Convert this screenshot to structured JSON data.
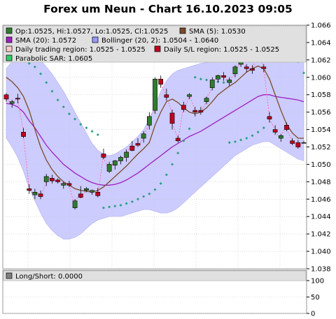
{
  "title": "Forex um Neun - Chart 16.10.2023 09:05",
  "legend": {
    "ohlc": "Op:1.0525, Hi:1.0527, Lo:1.0525, Cl:1.0525",
    "sma5": "SMA (5): 1.0530",
    "sma20": "SMA (20): 1.0572",
    "bollinger": "Bollinger (20, 2): 1.0504 - 1.0640",
    "trading_region": "Daily trading region: 1.0525 - 1.0525",
    "sl_region": "Daily S/L region: 1.0525 - 1.0525",
    "sar": "Parabolic SAR: 1.0605"
  },
  "sub_legend": {
    "longshort": "Long/Short: 0.0000"
  },
  "colors": {
    "bull": "#2e7d2e",
    "bear": "#c00020",
    "sma5": "#7a4a2a",
    "sma20": "#a020c0",
    "bollinger_fill": "#ccccff",
    "sar": "#2aa080",
    "trading_link": "#ff6699"
  },
  "chart_data": [
    {
      "type": "candlestick",
      "title": "Forex um Neun - Chart 16.10.2023 09:05",
      "ylim": [
        1.038,
        1.066
      ],
      "y_ticks": [
        "1.038",
        "1.040",
        "1.042",
        "1.044",
        "1.046",
        "1.048",
        "1.050",
        "1.052",
        "1.054",
        "1.056",
        "1.058",
        "1.060",
        "1.062",
        "1.064",
        "1.066"
      ],
      "grid": true,
      "legend_position": "top",
      "candles": [
        {
          "o": 1.058,
          "h": 1.0582,
          "l": 1.0572,
          "c": 1.0575
        },
        {
          "o": 1.057,
          "h": 1.0574,
          "l": 1.0565,
          "c": 1.0572
        },
        {
          "o": 1.0576,
          "h": 1.0581,
          "l": 1.057,
          "c": 1.0575
        },
        {
          "o": 1.0537,
          "h": 1.0542,
          "l": 1.053,
          "c": 1.0532
        },
        {
          "o": 1.0472,
          "h": 1.0477,
          "l": 1.0466,
          "c": 1.047
        },
        {
          "o": 1.0465,
          "h": 1.0472,
          "l": 1.046,
          "c": 1.0468
        },
        {
          "o": 1.0466,
          "h": 1.047,
          "l": 1.046,
          "c": 1.0463
        },
        {
          "o": 1.048,
          "h": 1.0489,
          "l": 1.0475,
          "c": 1.0486
        },
        {
          "o": 1.0484,
          "h": 1.0488,
          "l": 1.0478,
          "c": 1.0481
        },
        {
          "o": 1.0482,
          "h": 1.0484,
          "l": 1.0478,
          "c": 1.048
        },
        {
          "o": 1.0476,
          "h": 1.048,
          "l": 1.0472,
          "c": 1.0478
        },
        {
          "o": 1.0478,
          "h": 1.0481,
          "l": 1.0474,
          "c": 1.0476
        },
        {
          "o": 1.045,
          "h": 1.046,
          "l": 1.0448,
          "c": 1.0458
        },
        {
          "o": 1.0466,
          "h": 1.0475,
          "l": 1.0461,
          "c": 1.0462
        },
        {
          "o": 1.047,
          "h": 1.0474,
          "l": 1.0468,
          "c": 1.0472
        },
        {
          "o": 1.0468,
          "h": 1.0471,
          "l": 1.0465,
          "c": 1.047
        },
        {
          "o": 1.0468,
          "h": 1.0473,
          "l": 1.0462,
          "c": 1.0464
        },
        {
          "o": 1.0512,
          "h": 1.0518,
          "l": 1.0506,
          "c": 1.0508
        },
        {
          "o": 1.0492,
          "h": 1.0503,
          "l": 1.049,
          "c": 1.05
        },
        {
          "o": 1.0499,
          "h": 1.0505,
          "l": 1.0494,
          "c": 1.0504
        },
        {
          "o": 1.0504,
          "h": 1.051,
          "l": 1.05,
          "c": 1.0508
        },
        {
          "o": 1.0508,
          "h": 1.0517,
          "l": 1.0503,
          "c": 1.0514
        },
        {
          "o": 1.0521,
          "h": 1.0527,
          "l": 1.0515,
          "c": 1.0516
        },
        {
          "o": 1.0524,
          "h": 1.053,
          "l": 1.052,
          "c": 1.0522
        },
        {
          "o": 1.053,
          "h": 1.0538,
          "l": 1.0525,
          "c": 1.0535
        },
        {
          "o": 1.0545,
          "h": 1.056,
          "l": 1.054,
          "c": 1.0555
        },
        {
          "o": 1.0562,
          "h": 1.06,
          "l": 1.0558,
          "c": 1.0598
        },
        {
          "o": 1.0598,
          "h": 1.0602,
          "l": 1.0588,
          "c": 1.0592
        },
        {
          "o": 1.058,
          "h": 1.0587,
          "l": 1.0573,
          "c": 1.0577
        },
        {
          "o": 1.0559,
          "h": 1.0563,
          "l": 1.054,
          "c": 1.0547
        },
        {
          "o": 1.053,
          "h": 1.0533,
          "l": 1.0525,
          "c": 1.0527
        },
        {
          "o": 1.0568,
          "h": 1.0572,
          "l": 1.056,
          "c": 1.0563
        },
        {
          "o": 1.0578,
          "h": 1.0582,
          "l": 1.0575,
          "c": 1.058
        },
        {
          "o": 1.0562,
          "h": 1.0566,
          "l": 1.0555,
          "c": 1.056
        },
        {
          "o": 1.0562,
          "h": 1.0566,
          "l": 1.0557,
          "c": 1.056
        },
        {
          "o": 1.0572,
          "h": 1.0578,
          "l": 1.0569,
          "c": 1.0576
        },
        {
          "o": 1.0588,
          "h": 1.06,
          "l": 1.0585,
          "c": 1.0597
        },
        {
          "o": 1.0598,
          "h": 1.0603,
          "l": 1.0594,
          "c": 1.0602
        },
        {
          "o": 1.0602,
          "h": 1.0606,
          "l": 1.0596,
          "c": 1.06
        },
        {
          "o": 1.0594,
          "h": 1.06,
          "l": 1.059,
          "c": 1.0597
        },
        {
          "o": 1.0604,
          "h": 1.0614,
          "l": 1.06,
          "c": 1.0612
        },
        {
          "o": 1.0615,
          "h": 1.0621,
          "l": 1.0612,
          "c": 1.0618
        },
        {
          "o": 1.0612,
          "h": 1.0615,
          "l": 1.0606,
          "c": 1.061
        },
        {
          "o": 1.061,
          "h": 1.0614,
          "l": 1.0604,
          "c": 1.0608
        },
        {
          "o": 1.0632,
          "h": 1.0635,
          "l": 1.0626,
          "c": 1.0628
        },
        {
          "o": 1.0612,
          "h": 1.0615,
          "l": 1.0606,
          "c": 1.061
        },
        {
          "o": 1.0555,
          "h": 1.056,
          "l": 1.0548,
          "c": 1.0552
        },
        {
          "o": 1.054,
          "h": 1.0545,
          "l": 1.0534,
          "c": 1.0537
        },
        {
          "o": 1.053,
          "h": 1.0535,
          "l": 1.0526,
          "c": 1.0533
        },
        {
          "o": 1.0545,
          "h": 1.0548,
          "l": 1.0538,
          "c": 1.054
        },
        {
          "o": 1.0527,
          "h": 1.053,
          "l": 1.0522,
          "c": 1.0524
        },
        {
          "o": 1.0525,
          "h": 1.0528,
          "l": 1.0518,
          "c": 1.052
        },
        {
          "o": 1.0525,
          "h": 1.0527,
          "l": 1.0525,
          "c": 1.0525
        }
      ],
      "sma5": [
        1.06,
        1.0595,
        1.0588,
        1.0578,
        1.0562,
        1.054,
        1.052,
        1.0505,
        1.0494,
        1.0486,
        1.048,
        1.0476,
        1.0472,
        1.047,
        1.0469,
        1.0468,
        1.047,
        1.0474,
        1.048,
        1.0486,
        1.0492,
        1.0498,
        1.0505,
        1.0512,
        1.0518,
        1.0525,
        1.0545,
        1.056,
        1.0572,
        1.0575,
        1.0571,
        1.0565,
        1.056,
        1.0558,
        1.056,
        1.0565,
        1.0572,
        1.058,
        1.0585,
        1.059,
        1.0594,
        1.06,
        1.0606,
        1.061,
        1.0613,
        1.061,
        1.0598,
        1.058,
        1.0562,
        1.0546,
        1.0536,
        1.053,
        1.053
      ],
      "sma20": [
        1.057,
        1.0569,
        1.0566,
        1.056,
        1.055,
        1.0542,
        1.0532,
        1.0522,
        1.0514,
        1.0507,
        1.05,
        1.0495,
        1.049,
        1.0486,
        1.0482,
        1.0479,
        1.0477,
        1.0476,
        1.0476,
        1.0477,
        1.0479,
        1.0482,
        1.0486,
        1.049,
        1.0495,
        1.05,
        1.0505,
        1.051,
        1.0515,
        1.052,
        1.0524,
        1.0528,
        1.0532,
        1.0535,
        1.0538,
        1.0542,
        1.0546,
        1.055,
        1.0554,
        1.0558,
        1.0562,
        1.0566,
        1.057,
        1.0574,
        1.0578,
        1.058,
        1.058,
        1.0578,
        1.0577,
        1.0576,
        1.0575,
        1.0574,
        1.0572
      ],
      "bollinger_upper": [
        1.061,
        1.0618,
        1.0624,
        1.0628,
        1.0628,
        1.0626,
        1.062,
        1.0612,
        1.0604,
        1.0594,
        1.0584,
        1.0572,
        1.056,
        1.0548,
        1.0536,
        1.0524,
        1.0516,
        1.0512,
        1.051,
        1.0512,
        1.0516,
        1.052,
        1.0526,
        1.0532,
        1.054,
        1.0552,
        1.0568,
        1.0584,
        1.0596,
        1.0604,
        1.0608,
        1.061,
        1.0612,
        1.0614,
        1.0616,
        1.0617,
        1.0618,
        1.0619,
        1.062,
        1.0622,
        1.0624,
        1.0626,
        1.0628,
        1.063,
        1.0634,
        1.0636,
        1.0636,
        1.0636,
        1.0637,
        1.0638,
        1.0639,
        1.064,
        1.064
      ],
      "bollinger_lower": [
        1.053,
        1.052,
        1.0508,
        1.0492,
        1.0472,
        1.0458,
        1.0444,
        1.0432,
        1.0424,
        1.0418,
        1.0414,
        1.0414,
        1.0416,
        1.042,
        1.0426,
        1.0432,
        1.0436,
        1.0438,
        1.044,
        1.044,
        1.044,
        1.0442,
        1.0444,
        1.0446,
        1.0448,
        1.0448,
        1.0446,
        1.0444,
        1.0444,
        1.0446,
        1.045,
        1.0456,
        1.0462,
        1.0468,
        1.0474,
        1.048,
        1.0486,
        1.0492,
        1.0498,
        1.0504,
        1.051,
        1.0514,
        1.0518,
        1.0522,
        1.0524,
        1.0526,
        1.0526,
        1.0522,
        1.0518,
        1.0514,
        1.051,
        1.0506,
        1.0504
      ],
      "sar": [
        null,
        null,
        null,
        null,
        1.0616,
        1.0612,
        1.0604,
        1.0594,
        1.0584,
        1.0574,
        1.0566,
        1.0558,
        1.0552,
        1.0546,
        1.0542,
        1.0538,
        1.0534,
        1.045,
        1.0451,
        1.0452,
        1.0453,
        1.0455,
        1.0457,
        1.046,
        1.0463,
        1.0466,
        1.0471,
        1.0478,
        1.0488,
        1.05,
        1.0513,
        1.0527,
        1.0541,
        1.06,
        1.0598,
        1.0597,
        1.0596,
        1.0595,
        1.0594,
        1.0525,
        1.0526,
        1.0528,
        1.053,
        1.0533,
        1.0537,
        1.0542,
        1.064,
        1.0637,
        1.0634,
        1.063,
        1.0625,
        1.0618,
        1.0605
      ]
    },
    {
      "type": "bar",
      "title": "Long/Short",
      "ylim": [
        0,
        100
      ],
      "y_ticks": [
        "0",
        "50",
        "100"
      ],
      "values": [
        0
      ]
    }
  ]
}
